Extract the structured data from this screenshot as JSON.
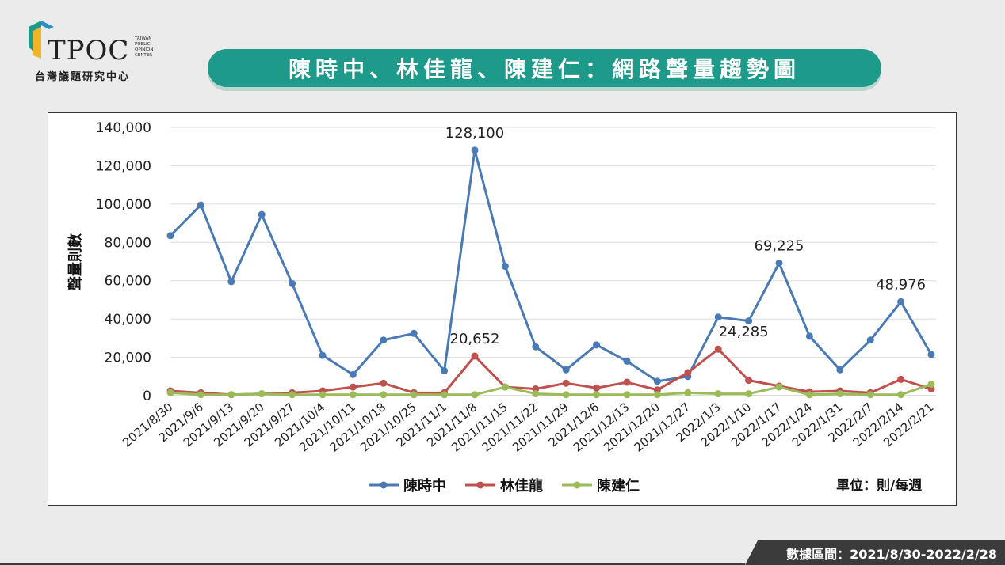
{
  "logo": {
    "brand": "TPOC",
    "sub_lines": [
      "TAIWAN",
      "PUBLIC",
      "OPINION",
      "CENTER"
    ],
    "caption": "台灣議題研究中心"
  },
  "title": "陳時中、林佳龍、陳建仁：網路聲量趨勢圖",
  "unit_label": "單位：則/每週",
  "date_range": "數據區間：2021/8/30-2022/2/28",
  "chart_data": {
    "type": "line",
    "ylabel": "聲量則數",
    "xlabel": "",
    "ylim": [
      0,
      140000
    ],
    "yticks": [
      0,
      20000,
      40000,
      60000,
      80000,
      100000,
      120000,
      140000
    ],
    "ytick_labels": [
      "0",
      "20,000",
      "40,000",
      "60,000",
      "80,000",
      "100,000",
      "120,000",
      "140,000"
    ],
    "grid": true,
    "legend_position": "bottom",
    "categories": [
      "2021/8/30",
      "2021/9/6",
      "2021/9/13",
      "2021/9/20",
      "2021/9/27",
      "2021/10/4",
      "2021/10/11",
      "2021/10/18",
      "2021/10/25",
      "2021/11/1",
      "2021/11/8",
      "2021/11/15",
      "2021/11/22",
      "2021/11/29",
      "2021/12/6",
      "2021/12/13",
      "2021/12/20",
      "2021/12/27",
      "2022/1/3",
      "2022/1/10",
      "2022/1/17",
      "2022/1/24",
      "2022/1/31",
      "2022/2/7",
      "2022/2/14",
      "2022/2/21"
    ],
    "series": [
      {
        "name": "陳時中",
        "color": "#4a7ab5",
        "values": [
          83500,
          99500,
          59500,
          94500,
          58500,
          21000,
          11000,
          29000,
          32500,
          13000,
          128100,
          67500,
          25500,
          13500,
          26500,
          18000,
          7500,
          10000,
          41000,
          39000,
          69225,
          31000,
          13500,
          29000,
          48976,
          21500
        ]
      },
      {
        "name": "林佳龍",
        "color": "#c0504d",
        "values": [
          2500,
          1500,
          500,
          1000,
          1500,
          2500,
          4500,
          6500,
          1500,
          1500,
          20652,
          4500,
          3500,
          6500,
          4000,
          7000,
          3000,
          12000,
          24285,
          8000,
          5000,
          2000,
          2500,
          1500,
          8500,
          3500
        ]
      },
      {
        "name": "陳建仁",
        "color": "#9bbb59",
        "values": [
          1500,
          500,
          500,
          1000,
          500,
          500,
          500,
          500,
          500,
          500,
          500,
          4500,
          1000,
          500,
          500,
          500,
          500,
          1500,
          1000,
          1000,
          4500,
          500,
          1000,
          500,
          500,
          6000
        ]
      }
    ],
    "annotations": [
      {
        "series": 0,
        "index": 10,
        "text": "128,100"
      },
      {
        "series": 0,
        "index": 20,
        "text": "69,225"
      },
      {
        "series": 0,
        "index": 24,
        "text": "48,976"
      },
      {
        "series": 1,
        "index": 10,
        "text": "20,652"
      },
      {
        "series": 1,
        "index": 18,
        "text": "24,285"
      }
    ]
  }
}
